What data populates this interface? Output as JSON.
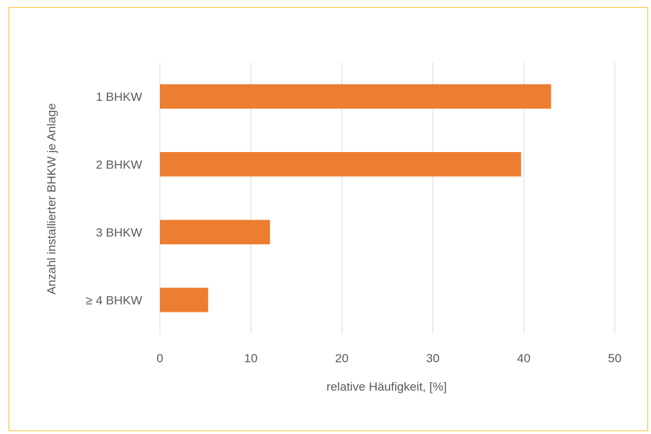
{
  "chart_data": {
    "type": "bar",
    "orientation": "horizontal",
    "categories": [
      "1 BHKW",
      "2 BHKW",
      "3 BHKW",
      "≥ 4 BHKW"
    ],
    "values": [
      43.0,
      39.7,
      12.1,
      5.3
    ],
    "xlabel": "relative Häufigkeit, [%]",
    "ylabel": "Anzahl installierter BHKW je Anlage",
    "xlim": [
      0,
      50
    ],
    "xticks": [
      0,
      10,
      20,
      30,
      40,
      50
    ],
    "grid": "vertical",
    "legend": "none",
    "bar_color": "#ed7d31",
    "grid_color": "#d9d9d9",
    "border_color": "#f2c232"
  }
}
